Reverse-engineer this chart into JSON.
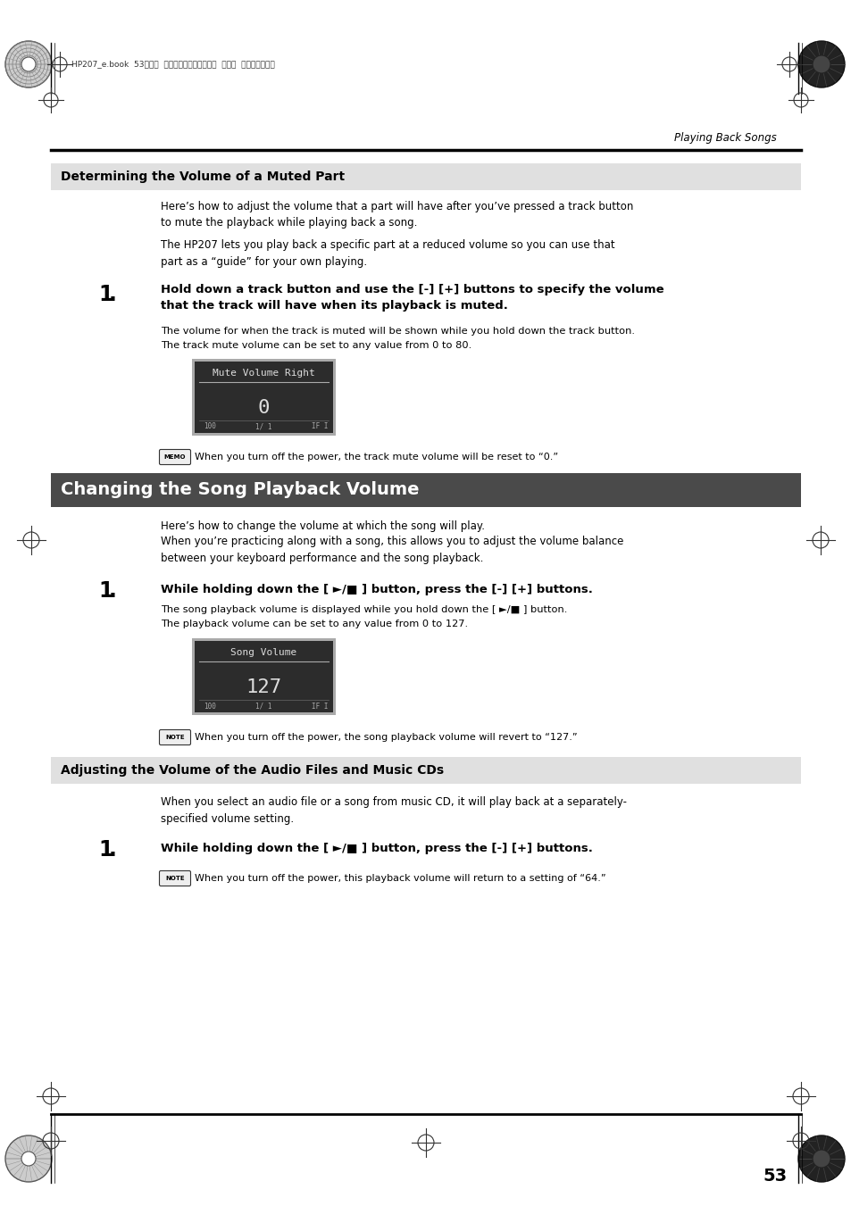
{
  "page_bg": "#ffffff",
  "top_bar_text": "HP207_e.book  53ページ  ２００６年１２月２５日  月曜日  午前９時５２分",
  "header_right": "Playing Back Songs",
  "section1_title": "Determining the Volume of a Muted Part",
  "section1_bg": "#e0e0e0",
  "section1_para1": "Here’s how to adjust the volume that a part will have after you’ve pressed a track button\nto mute the playback while playing back a song.",
  "section1_para2": "The HP207 lets you play back a specific part at a reduced volume so you can use that\npart as a “guide” for your own playing.",
  "step1_bold_line1": "Hold down a track button and use the [-] [+] buttons to specify the volume",
  "step1_bold_line2": "that the track will have when its playback is muted.",
  "step1_note1": "The volume for when the track is muted will be shown while you hold down the track button.",
  "step1_note2": "The track mute volume can be set to any value from 0 to 80.",
  "lcd1_title": "Mute Volume Right",
  "lcd1_value": "0",
  "memo_text": "When you turn off the power, the track mute volume will be reset to “0.”",
  "section2_title": "Changing the Song Playback Volume",
  "section2_bg": "#4a4a4a",
  "section2_title_color": "#ffffff",
  "section2_para1": "Here’s how to change the volume at which the song will play.",
  "section2_para2": "When you’re practicing along with a song, this allows you to adjust the volume balance\nbetween your keyboard performance and the song playback.",
  "step2_bold": "While holding down the [ ►/■ ] button, press the [-] [+] buttons.",
  "step2_note1": "The song playback volume is displayed while you hold down the [ ►/■ ] button.",
  "step2_note2": "The playback volume can be set to any value from 0 to 127.",
  "lcd2_title": "Song Volume",
  "lcd2_value": "127",
  "note2_text": "When you turn off the power, the song playback volume will revert to “127.”",
  "section3_title": "Adjusting the Volume of the Audio Files and Music CDs",
  "section3_bg": "#e0e0e0",
  "section3_para1": "When you select an audio file or a song from music CD, it will play back at a separately-\nspecified volume setting.",
  "step3_bold": "While holding down the [ ►/■ ] button, press the [-] [+] buttons.",
  "step3_note": "When you turn off the power, this playback volume will return to a setting of “64.”",
  "page_number": "53"
}
